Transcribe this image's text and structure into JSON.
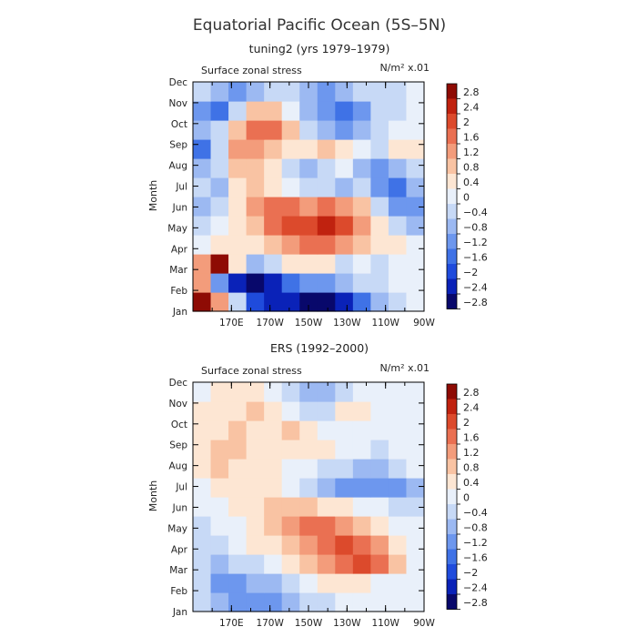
{
  "figure": {
    "title": "Equatorial Pacific Ocean (5S–5N)"
  },
  "colorbar": {
    "labels": [
      "2.8",
      "2.4",
      "2",
      "1.6",
      "1.2",
      "0.8",
      "0.4",
      "0",
      "−0.4",
      "−0.8",
      "−1.2",
      "−1.6",
      "−2",
      "−2.4",
      "−2.8"
    ],
    "levels": [
      -2.8,
      -2.4,
      -2.0,
      -1.6,
      -1.2,
      -0.8,
      -0.4,
      0,
      0.4,
      0.8,
      1.2,
      1.6,
      2.0,
      2.4,
      2.8
    ],
    "colors": [
      "#08086b",
      "#0a22b8",
      "#1f4bdc",
      "#3f72e6",
      "#6d97ee",
      "#9cb9f2",
      "#c7d9f6",
      "#e9f0fa",
      "#fde6d3",
      "#f9c3a3",
      "#f39c7b",
      "#ea7052",
      "#dc4a2c",
      "#c0220f",
      "#8e0b04"
    ]
  },
  "chart_data": [
    {
      "type": "heatmap",
      "subtitle": "tuning2 (yrs 1979–1979)",
      "panel_label": "Surface zonal stress",
      "units": "N/m² x.01",
      "ylabel": "Month",
      "months": [
        "Jan",
        "Feb",
        "Mar",
        "Apr",
        "May",
        "Jun",
        "Jul",
        "Aug",
        "Sep",
        "Oct",
        "Nov",
        "Dec"
      ],
      "lon_ticks": [
        "170E",
        "170W",
        "150W",
        "130W",
        "110W",
        "90W"
      ],
      "x": [
        150,
        160,
        170,
        180,
        190,
        200,
        210,
        220,
        230,
        240,
        250,
        260,
        270
      ],
      "x_note": "longitude in degrees east (150E .. 90W)",
      "values": [
        [
          3.0,
          1.0,
          -0.6,
          -2.0,
          -2.4,
          -2.6,
          -2.8,
          -2.8,
          -2.4,
          -1.6,
          -0.8,
          -0.4,
          0.0
        ],
        [
          1.0,
          -1.4,
          -2.6,
          -2.8,
          -2.4,
          -1.6,
          -1.2,
          -1.2,
          -1.0,
          -0.4,
          -0.4,
          0.0,
          0.0
        ],
        [
          1.2,
          3.0,
          0.4,
          -0.8,
          -0.4,
          0.4,
          0.4,
          0.4,
          -0.4,
          0.0,
          -0.4,
          0.0,
          0.0
        ],
        [
          0.0,
          0.4,
          0.4,
          0.4,
          0.8,
          1.2,
          1.6,
          1.6,
          1.2,
          0.8,
          0.4,
          0.4,
          0.0
        ],
        [
          -0.4,
          0.0,
          0.4,
          0.8,
          1.6,
          2.0,
          2.0,
          2.4,
          2.0,
          1.2,
          0.4,
          -0.4,
          -0.8
        ],
        [
          -0.8,
          -0.4,
          0.4,
          1.2,
          1.6,
          1.6,
          1.2,
          1.6,
          1.2,
          0.8,
          -0.4,
          -1.2,
          -1.4
        ],
        [
          -0.4,
          -0.8,
          0.4,
          0.8,
          0.4,
          0.0,
          -0.4,
          -0.4,
          -0.8,
          -0.4,
          -1.2,
          -1.6,
          -0.8
        ],
        [
          -0.8,
          -0.4,
          0.8,
          0.8,
          0.4,
          -0.4,
          -0.8,
          -0.4,
          0.0,
          -0.8,
          -1.2,
          -0.8,
          -0.4
        ],
        [
          -1.6,
          -0.4,
          1.2,
          1.2,
          0.8,
          0.4,
          0.4,
          0.8,
          0.4,
          0.0,
          -0.4,
          0.4,
          0.4
        ],
        [
          -0.8,
          -0.4,
          0.8,
          1.6,
          1.6,
          0.8,
          -0.4,
          -0.8,
          -1.2,
          -0.8,
          -0.4,
          0.0,
          0.0
        ],
        [
          -1.2,
          -1.6,
          -0.4,
          0.8,
          0.8,
          0.0,
          -0.8,
          -1.2,
          -1.6,
          -1.2,
          -0.4,
          -0.4,
          0.0
        ],
        [
          -0.4,
          -0.8,
          -1.2,
          -0.8,
          -0.4,
          -0.4,
          -0.8,
          -1.2,
          -0.8,
          -0.4,
          -0.4,
          -0.4,
          0.0
        ]
      ]
    },
    {
      "type": "heatmap",
      "subtitle": "ERS (1992–2000)",
      "panel_label": "Surface zonal stress",
      "units": "N/m² x.01",
      "ylabel": "Month",
      "months": [
        "Jan",
        "Feb",
        "Mar",
        "Apr",
        "May",
        "Jun",
        "Jul",
        "Aug",
        "Sep",
        "Oct",
        "Nov",
        "Dec"
      ],
      "lon_ticks": [
        "170E",
        "170W",
        "150W",
        "130W",
        "110W",
        "90W"
      ],
      "x": [
        150,
        160,
        170,
        180,
        190,
        200,
        210,
        220,
        230,
        240,
        250,
        260,
        270
      ],
      "x_note": "longitude in degrees east (150E .. 90W)",
      "values": [
        [
          -0.4,
          -0.8,
          -1.2,
          -1.2,
          -1.2,
          -0.8,
          -0.4,
          -0.4,
          0.0,
          0.0,
          0.0,
          0.0,
          0.0
        ],
        [
          -0.4,
          -1.2,
          -1.2,
          -0.8,
          -0.8,
          -0.4,
          0.0,
          0.4,
          0.4,
          0.4,
          0.0,
          0.0,
          0.0
        ],
        [
          -0.4,
          -0.8,
          -0.4,
          -0.4,
          0.0,
          0.4,
          0.8,
          1.2,
          1.6,
          2.0,
          1.6,
          0.8,
          0.0
        ],
        [
          -0.4,
          -0.4,
          0.0,
          0.4,
          0.4,
          0.8,
          1.2,
          1.6,
          2.0,
          1.6,
          1.2,
          0.4,
          0.0
        ],
        [
          -0.4,
          0.0,
          0.0,
          0.4,
          0.8,
          1.2,
          1.6,
          1.6,
          1.2,
          0.8,
          0.4,
          0.0,
          0.0
        ],
        [
          0.0,
          0.0,
          0.4,
          0.4,
          0.8,
          0.8,
          0.8,
          0.4,
          0.4,
          0.0,
          0.0,
          -0.4,
          -0.4
        ],
        [
          0.0,
          0.4,
          0.4,
          0.4,
          0.4,
          0.0,
          -0.4,
          -0.8,
          -1.2,
          -1.2,
          -1.2,
          -1.2,
          -0.8
        ],
        [
          0.4,
          0.8,
          0.4,
          0.4,
          0.4,
          0.0,
          0.0,
          -0.4,
          -0.4,
          -0.8,
          -0.8,
          -0.4,
          0.0
        ],
        [
          0.4,
          0.8,
          0.8,
          0.4,
          0.4,
          0.4,
          0.4,
          0.4,
          0.0,
          0.0,
          -0.4,
          0.0,
          0.0
        ],
        [
          0.4,
          0.4,
          0.8,
          0.4,
          0.4,
          0.8,
          0.4,
          0.0,
          0.0,
          0.0,
          0.0,
          0.0,
          0.0
        ],
        [
          0.4,
          0.4,
          0.4,
          0.8,
          0.4,
          0.0,
          -0.4,
          -0.4,
          0.4,
          0.4,
          0.0,
          0.0,
          0.0
        ],
        [
          0.0,
          0.4,
          0.4,
          0.4,
          0.0,
          -0.4,
          -0.8,
          -0.8,
          -0.4,
          0.0,
          0.0,
          0.0,
          0.0
        ]
      ]
    }
  ]
}
